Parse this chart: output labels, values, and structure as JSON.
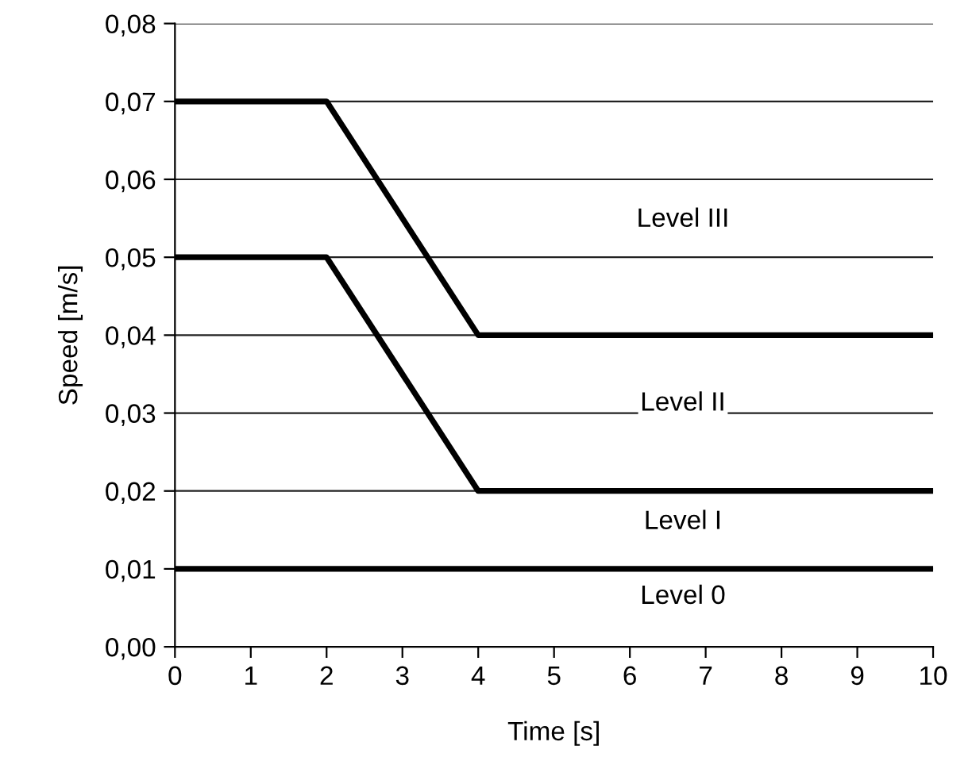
{
  "chart_data": {
    "type": "line",
    "xlabel": "Time [s]",
    "ylabel": "Speed [m/s]",
    "xlim": [
      0,
      10
    ],
    "ylim": [
      0,
      0.08
    ],
    "xticks": [
      0,
      1,
      2,
      3,
      4,
      5,
      6,
      7,
      8,
      9,
      10
    ],
    "yticks": [
      {
        "value": 0,
        "label": "0,00"
      },
      {
        "value": 0.01,
        "label": "0,01"
      },
      {
        "value": 0.02,
        "label": "0,02"
      },
      {
        "value": 0.03,
        "label": "0,03"
      },
      {
        "value": 0.04,
        "label": "0,04"
      },
      {
        "value": 0.05,
        "label": "0,05"
      },
      {
        "value": 0.06,
        "label": "0,06"
      },
      {
        "value": 0.07,
        "label": "0,07"
      },
      {
        "value": 0.08,
        "label": "0,08"
      }
    ],
    "grid": "y",
    "marker": "none",
    "line_style": "solid",
    "series": [
      {
        "color": "#000000",
        "x": [
          0,
          2,
          4,
          10
        ],
        "values": [
          0.07,
          0.07,
          0.04,
          0.04
        ]
      },
      {
        "color": "#000000",
        "x": [
          0,
          2,
          4,
          10
        ],
        "values": [
          0.05,
          0.05,
          0.02,
          0.02
        ]
      },
      {
        "color": "#000000",
        "x": [
          0,
          10
        ],
        "values": [
          0.01,
          0.01
        ]
      }
    ],
    "annotations": [
      "Level III",
      "Level II",
      "Level I",
      "Level 0"
    ]
  }
}
